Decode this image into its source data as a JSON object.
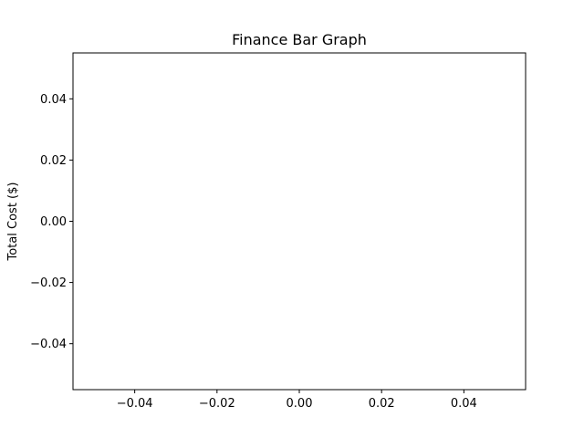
{
  "chart_data": {
    "type": "bar",
    "title": "Finance Bar Graph",
    "xlabel": "",
    "ylabel": "Total Cost ($)",
    "categories": [],
    "values": [],
    "xlim": [
      -0.055,
      0.055
    ],
    "ylim": [
      -0.055,
      0.055
    ],
    "xticks": [
      -0.04,
      -0.02,
      0.0,
      0.02,
      0.04
    ],
    "xtick_labels": [
      "−0.04",
      "−0.02",
      "0.00",
      "0.02",
      "0.04"
    ],
    "yticks": [
      -0.04,
      -0.02,
      0.0,
      0.02,
      0.04
    ],
    "ytick_labels": [
      "−0.04",
      "−0.02",
      "0.00",
      "0.02",
      "0.04"
    ],
    "grid": false,
    "legend": false
  }
}
